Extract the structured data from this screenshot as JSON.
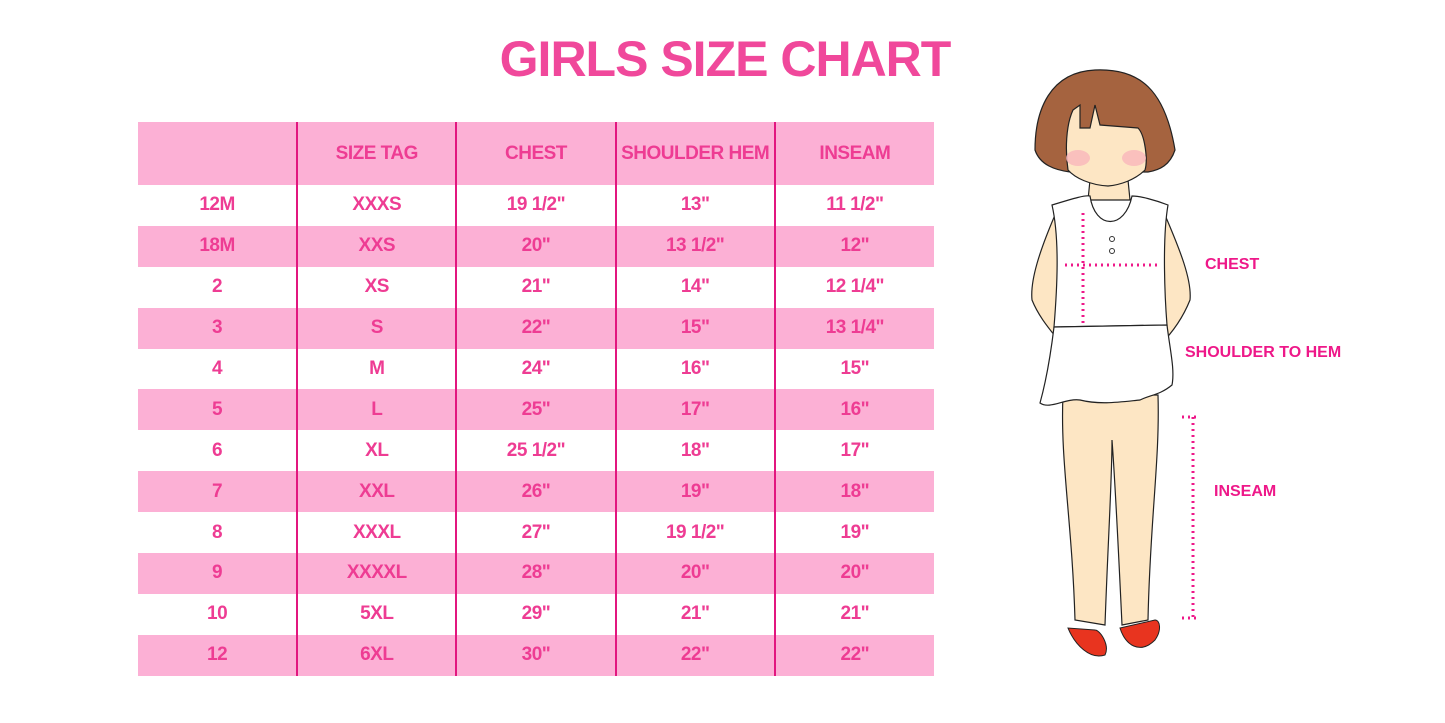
{
  "title": "GIRLS SIZE CHART",
  "table": {
    "headers": [
      "",
      "SIZE TAG",
      "CHEST",
      "SHOULDER HEM",
      "INSEAM"
    ],
    "rows": [
      [
        "12M",
        "XXXS",
        "19 1/2\"",
        "13\"",
        "11 1/2\""
      ],
      [
        "18M",
        "XXS",
        "20\"",
        "13 1/2\"",
        "12\""
      ],
      [
        "2",
        "XS",
        "21\"",
        "14\"",
        "12 1/4\""
      ],
      [
        "3",
        "S",
        "22\"",
        "15\"",
        "13 1/4\""
      ],
      [
        "4",
        "M",
        "24\"",
        "16\"",
        "15\""
      ],
      [
        "5",
        "L",
        "25\"",
        "17\"",
        "16\""
      ],
      [
        "6",
        "XL",
        "25 1/2\"",
        "18\"",
        "17\""
      ],
      [
        "7",
        "XXL",
        "26\"",
        "19\"",
        "18\""
      ],
      [
        "8",
        "XXXL",
        "27\"",
        "19 1/2\"",
        "19\""
      ],
      [
        "9",
        "XXXXL",
        "28\"",
        "20\"",
        "20\""
      ],
      [
        "10",
        "5XL",
        "29\"",
        "21\"",
        "21\""
      ],
      [
        "12",
        "6XL",
        "30\"",
        "22\"",
        "22\""
      ]
    ]
  },
  "figure": {
    "labels": {
      "chest": "CHEST",
      "shoulder": "SHOULDER TO HEM",
      "inseam": "INSEAM"
    }
  },
  "colors": {
    "accent": "#f0489b",
    "band": "#fcb0d5",
    "divider": "#e2167f"
  }
}
